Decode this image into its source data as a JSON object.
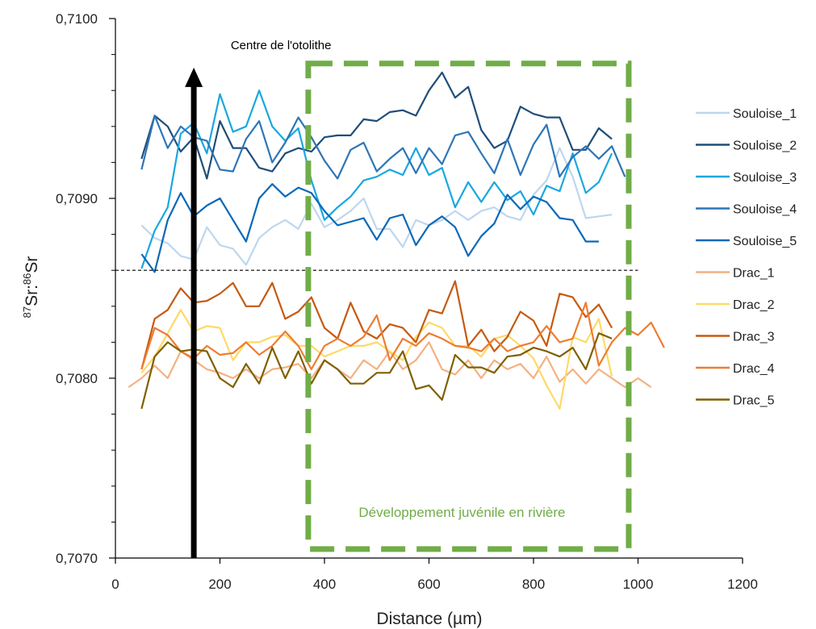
{
  "chart_data": {
    "type": "line",
    "xlabel": "Distance (µm)",
    "ylabel": {
      "sup1": "87",
      "base1": "Sr:",
      "sup2": "86",
      "base2": "Sr"
    },
    "xlim": [
      0,
      1200
    ],
    "ylim": [
      0.707,
      0.71
    ],
    "xticks": [
      0,
      200,
      400,
      600,
      800,
      1000,
      1200
    ],
    "xtick_labels": [
      "0",
      "200",
      "400",
      "600",
      "800",
      "1000",
      "1200"
    ],
    "yticks": [
      0.707,
      0.708,
      0.709,
      0.71
    ],
    "ytick_labels": [
      "0,7070",
      "0,7080",
      "0,7090",
      "0,7100"
    ],
    "y_minor_ticks": [
      0.7072,
      0.7074,
      0.7076,
      0.7078,
      0.7082,
      0.7084,
      0.7086,
      0.7088,
      0.7092,
      0.7094,
      0.7096,
      0.7098
    ],
    "grid": false,
    "legend_position": "right",
    "reference_line": {
      "y": 0.7086,
      "x_range": [
        0,
        1000
      ],
      "style": "dashed",
      "color": "#000000"
    },
    "annotations": {
      "arrow": {
        "label": "Centre de l'otolithe",
        "x": 150,
        "y_from": 0.707,
        "y_to": 0.7097,
        "color": "#000000"
      },
      "box": {
        "label": "Développement juvénile en rivière",
        "x_range": [
          335,
          1010
        ],
        "y_range": [
          0.70705,
          0.70975
        ],
        "color": "#70ad47"
      }
    },
    "series": [
      {
        "name": "Souloise_1",
        "color": "#bdd7ee",
        "x": [
          50,
          75,
          100,
          125,
          150,
          175,
          200,
          225,
          250,
          275,
          300,
          325,
          350,
          375,
          400,
          425,
          450,
          475,
          500,
          525,
          550,
          575,
          600,
          625,
          650,
          675,
          700,
          725,
          750,
          775,
          800,
          825,
          850,
          875,
          900,
          925,
          950
        ],
        "y": [
          0.70885,
          0.70878,
          0.70875,
          0.70868,
          0.70866,
          0.70884,
          0.70874,
          0.70872,
          0.70863,
          0.70878,
          0.70884,
          0.70888,
          0.70883,
          0.70897,
          0.70884,
          0.70888,
          0.70893,
          0.709,
          0.70883,
          0.70883,
          0.70873,
          0.70888,
          0.70885,
          0.70888,
          0.70893,
          0.70888,
          0.70893,
          0.70895,
          0.7089,
          0.70888,
          0.70902,
          0.7091,
          0.70928,
          0.70912,
          0.70889,
          0.7089,
          0.70891
        ]
      },
      {
        "name": "Souloise_2",
        "color": "#1f4e79",
        "x": [
          50,
          75,
          100,
          125,
          150,
          175,
          200,
          225,
          250,
          275,
          300,
          325,
          350,
          375,
          400,
          425,
          450,
          475,
          500,
          525,
          550,
          575,
          600,
          625,
          650,
          675,
          700,
          725,
          750,
          775,
          800,
          825,
          850,
          875,
          900,
          925,
          950
        ],
        "y": [
          0.70922,
          0.70946,
          0.7094,
          0.70926,
          0.70934,
          0.70911,
          0.70943,
          0.70928,
          0.70928,
          0.70917,
          0.70915,
          0.70925,
          0.70928,
          0.70926,
          0.70934,
          0.70935,
          0.70935,
          0.70944,
          0.70943,
          0.70948,
          0.70949,
          0.70946,
          0.7096,
          0.7097,
          0.70956,
          0.70962,
          0.70938,
          0.70928,
          0.70932,
          0.70951,
          0.70947,
          0.70945,
          0.70945,
          0.70927,
          0.70927,
          0.70939,
          0.70933
        ]
      },
      {
        "name": "Souloise_3",
        "color": "#19a7e0",
        "x": [
          50,
          75,
          100,
          125,
          150,
          175,
          200,
          225,
          250,
          275,
          300,
          325,
          350,
          375,
          400,
          425,
          450,
          475,
          500,
          525,
          550,
          575,
          600,
          625,
          650,
          675,
          700,
          725,
          750,
          775,
          800,
          825,
          850,
          875,
          900,
          925,
          950
        ],
        "y": [
          0.70861,
          0.70882,
          0.70895,
          0.70936,
          0.70942,
          0.70925,
          0.70958,
          0.70937,
          0.7094,
          0.7096,
          0.7094,
          0.70932,
          0.70939,
          0.7091,
          0.70888,
          0.70895,
          0.70901,
          0.7091,
          0.70912,
          0.70916,
          0.70913,
          0.70928,
          0.70913,
          0.70917,
          0.70895,
          0.70909,
          0.70898,
          0.70909,
          0.70899,
          0.70904,
          0.70891,
          0.70907,
          0.70904,
          0.70925,
          0.70903,
          0.70909,
          0.70925
        ]
      },
      {
        "name": "Souloise_4",
        "color": "#2e75b6",
        "x": [
          50,
          75,
          100,
          125,
          150,
          175,
          200,
          225,
          250,
          275,
          300,
          325,
          350,
          375,
          400,
          425,
          450,
          475,
          500,
          525,
          550,
          575,
          600,
          625,
          650,
          675,
          700,
          725,
          750,
          775,
          800,
          825,
          850,
          875,
          900,
          925,
          950,
          975
        ],
        "y": [
          0.70916,
          0.70946,
          0.70928,
          0.7094,
          0.70934,
          0.70932,
          0.70916,
          0.70915,
          0.70933,
          0.70943,
          0.7092,
          0.70931,
          0.70945,
          0.70934,
          0.70921,
          0.70911,
          0.70927,
          0.70931,
          0.70915,
          0.70922,
          0.70928,
          0.70914,
          0.70928,
          0.70919,
          0.70935,
          0.70937,
          0.70925,
          0.70914,
          0.70933,
          0.70913,
          0.7093,
          0.70941,
          0.70912,
          0.70923,
          0.70929,
          0.70922,
          0.70929,
          0.70912
        ]
      },
      {
        "name": "Souloise_5",
        "color": "#0a69b8",
        "x": [
          50,
          75,
          100,
          125,
          150,
          175,
          200,
          225,
          250,
          275,
          300,
          325,
          350,
          375,
          400,
          425,
          450,
          475,
          500,
          525,
          550,
          575,
          600,
          625,
          650,
          675,
          700,
          725,
          750,
          775,
          800,
          825,
          850,
          875,
          900,
          925
        ],
        "y": [
          0.70869,
          0.70859,
          0.70888,
          0.70903,
          0.7089,
          0.70896,
          0.709,
          0.70888,
          0.70876,
          0.709,
          0.70908,
          0.70901,
          0.70906,
          0.70903,
          0.70893,
          0.70885,
          0.70887,
          0.70889,
          0.70877,
          0.70889,
          0.70891,
          0.70874,
          0.70885,
          0.7089,
          0.70884,
          0.70868,
          0.70879,
          0.70886,
          0.70902,
          0.70894,
          0.70901,
          0.70898,
          0.70889,
          0.70888,
          0.70876,
          0.70876
        ]
      },
      {
        "name": "Drac_1",
        "color": "#f4b183",
        "x": [
          25,
          50,
          75,
          100,
          125,
          150,
          175,
          200,
          225,
          250,
          275,
          300,
          325,
          350,
          375,
          400,
          425,
          450,
          475,
          500,
          525,
          550,
          575,
          600,
          625,
          650,
          675,
          700,
          725,
          750,
          775,
          800,
          825,
          850,
          875,
          900,
          925,
          950,
          975,
          1000,
          1025
        ],
        "y": [
          0.70795,
          0.708,
          0.70807,
          0.708,
          0.70815,
          0.7081,
          0.70805,
          0.70803,
          0.708,
          0.70805,
          0.708,
          0.70805,
          0.70806,
          0.70808,
          0.708,
          0.7081,
          0.70805,
          0.708,
          0.7081,
          0.70805,
          0.70815,
          0.70805,
          0.7081,
          0.7082,
          0.70805,
          0.70802,
          0.7081,
          0.708,
          0.7081,
          0.70805,
          0.70808,
          0.708,
          0.70812,
          0.70798,
          0.70805,
          0.70797,
          0.70805,
          0.708,
          0.70795,
          0.708,
          0.70795
        ]
      },
      {
        "name": "Drac_2",
        "color": "#ffd966",
        "x": [
          50,
          75,
          100,
          125,
          150,
          175,
          200,
          225,
          250,
          275,
          300,
          325,
          350,
          375,
          400,
          425,
          450,
          475,
          500,
          525,
          550,
          575,
          600,
          625,
          650,
          675,
          700,
          725,
          750,
          775,
          800,
          825,
          850,
          875,
          900,
          925,
          950
        ],
        "y": [
          0.70803,
          0.70812,
          0.70825,
          0.70838,
          0.70826,
          0.70829,
          0.70828,
          0.7081,
          0.7082,
          0.7082,
          0.70823,
          0.70824,
          0.70818,
          0.70818,
          0.70812,
          0.70815,
          0.70818,
          0.70818,
          0.7082,
          0.70815,
          0.7081,
          0.70823,
          0.70831,
          0.70828,
          0.70818,
          0.70818,
          0.70812,
          0.70822,
          0.70824,
          0.70818,
          0.70811,
          0.70796,
          0.70783,
          0.70823,
          0.7082,
          0.70833,
          0.70801
        ]
      },
      {
        "name": "Drac_3",
        "color": "#c55a11",
        "x": [
          50,
          75,
          100,
          125,
          150,
          175,
          200,
          225,
          250,
          275,
          300,
          325,
          350,
          375,
          400,
          425,
          450,
          475,
          500,
          525,
          550,
          575,
          600,
          625,
          650,
          675,
          700,
          725,
          750,
          775,
          800,
          825,
          850,
          875,
          900,
          925,
          950
        ],
        "y": [
          0.70805,
          0.70833,
          0.70838,
          0.7085,
          0.70842,
          0.70843,
          0.70847,
          0.70853,
          0.7084,
          0.7084,
          0.70853,
          0.70833,
          0.70837,
          0.70845,
          0.70828,
          0.70822,
          0.70842,
          0.70826,
          0.70822,
          0.7083,
          0.70828,
          0.7082,
          0.70838,
          0.70836,
          0.70854,
          0.70818,
          0.70827,
          0.70815,
          0.70823,
          0.70837,
          0.70832,
          0.70818,
          0.70847,
          0.70845,
          0.70834,
          0.70841,
          0.70828
        ]
      },
      {
        "name": "Drac_4",
        "color": "#ed7d31",
        "x": [
          50,
          75,
          100,
          125,
          150,
          175,
          200,
          225,
          250,
          275,
          300,
          325,
          350,
          375,
          400,
          425,
          450,
          475,
          500,
          525,
          550,
          575,
          600,
          625,
          650,
          675,
          700,
          725,
          750,
          775,
          800,
          825,
          850,
          875,
          900,
          925,
          950,
          975,
          1000,
          1025,
          1050
        ],
        "y": [
          0.70805,
          0.70828,
          0.70824,
          0.70815,
          0.70811,
          0.70818,
          0.70813,
          0.70814,
          0.7082,
          0.70813,
          0.70818,
          0.70826,
          0.70818,
          0.70805,
          0.70818,
          0.70822,
          0.70818,
          0.70823,
          0.70835,
          0.7081,
          0.70822,
          0.70818,
          0.70825,
          0.70822,
          0.70818,
          0.70817,
          0.70815,
          0.70822,
          0.70815,
          0.70818,
          0.7082,
          0.70829,
          0.7082,
          0.70822,
          0.70842,
          0.70807,
          0.7082,
          0.70828,
          0.70824,
          0.70831,
          0.70817
        ]
      },
      {
        "name": "Drac_5",
        "color": "#7f6000",
        "x": [
          50,
          75,
          100,
          125,
          150,
          175,
          200,
          225,
          250,
          275,
          300,
          325,
          350,
          375,
          400,
          425,
          450,
          475,
          500,
          525,
          550,
          575,
          600,
          625,
          650,
          675,
          700,
          725,
          750,
          775,
          800,
          825,
          850,
          875,
          900,
          925,
          950
        ],
        "y": [
          0.70783,
          0.70812,
          0.7082,
          0.70815,
          0.70816,
          0.70815,
          0.708,
          0.70795,
          0.70808,
          0.70797,
          0.70817,
          0.708,
          0.70815,
          0.70797,
          0.7081,
          0.70805,
          0.70797,
          0.70797,
          0.70803,
          0.70803,
          0.70815,
          0.70794,
          0.70796,
          0.70788,
          0.70813,
          0.70806,
          0.70806,
          0.70803,
          0.70812,
          0.70813,
          0.70817,
          0.70815,
          0.70812,
          0.70817,
          0.70805,
          0.70825,
          0.70822
        ]
      }
    ]
  }
}
